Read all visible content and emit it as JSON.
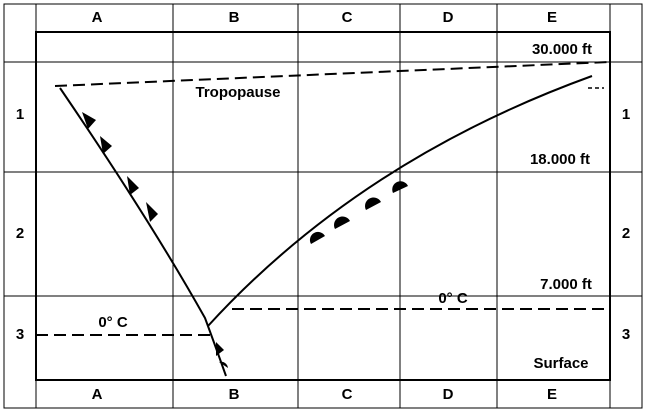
{
  "columns_top": [
    "A",
    "B",
    "C",
    "D",
    "E"
  ],
  "columns_bottom": [
    "A",
    "B",
    "C",
    "D",
    "E"
  ],
  "rows_left": [
    "1",
    "2",
    "3"
  ],
  "rows_right": [
    "1",
    "2",
    "3"
  ],
  "altitudes": [
    "30.000 ft",
    "18.000 ft",
    "7.000 ft",
    "Surface"
  ],
  "labels": {
    "tropopause": "Tropopause",
    "freezing_upper": "0° C",
    "freezing_lower": "0° C"
  }
}
